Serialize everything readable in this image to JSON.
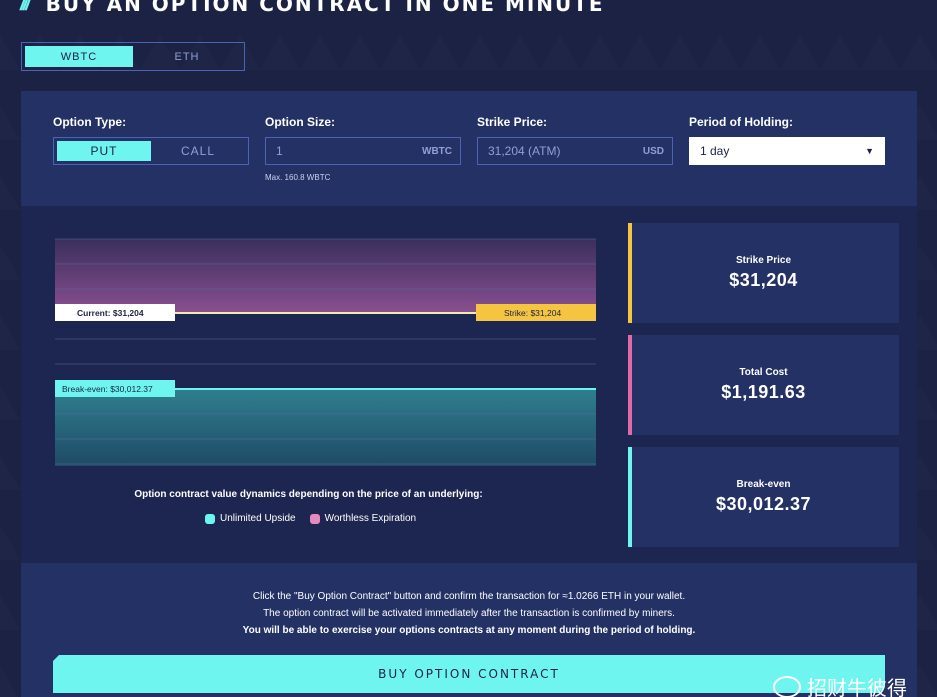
{
  "header": {
    "icon": "slash-stripes-icon",
    "title": "BUY AN OPTION CONTRACT IN ONE MINUTE"
  },
  "asset_toggle": {
    "options": [
      "WBTC",
      "ETH"
    ],
    "selected": "WBTC"
  },
  "form": {
    "option_type": {
      "label": "Option Type:",
      "options": [
        "PUT",
        "CALL"
      ],
      "selected": "PUT"
    },
    "option_size": {
      "label": "Option Size:",
      "value": "1",
      "unit": "WBTC",
      "hint": "Max. 160.8 WBTC"
    },
    "strike_price": {
      "label": "Strike Price:",
      "value": "31,204 (ATM)",
      "unit": "USD"
    },
    "period": {
      "label": "Period of Holding:",
      "value": "1 day"
    }
  },
  "chart": {
    "current_label": "Current: $31,204",
    "strike_label": "Strike: $31,204",
    "breakeven_label": "Break-even: $30,012.37",
    "caption": "Option contract value dynamics depending on the price of an underlying:",
    "legend": [
      {
        "label": "Unlimited Upside",
        "color": "#6ff5f0"
      },
      {
        "label": "Worthless Expiration",
        "color": "#e58ac0"
      }
    ],
    "colors": {
      "upper": "#8a4f8f",
      "lower": "#2f7f8f",
      "strike": "#f5c542",
      "breakeven": "#6ff5f0"
    }
  },
  "stats": [
    {
      "label": "Strike Price",
      "value": "$31,204",
      "color": "#f5c542"
    },
    {
      "label": "Total Cost",
      "value": "$1,191.63",
      "color": "#e06aa8"
    },
    {
      "label": "Break-even",
      "value": "$30,012.37",
      "color": "#6ff5f0"
    }
  ],
  "info": {
    "line1": "Click the \"Buy Option Contract\" button and confirm the transaction for ≈1.0266 ETH in your wallet.",
    "line2": "The option contract will be activated immediately after the transaction is confirmed by miners.",
    "line3": "You will be able to exercise your options contracts at any moment during the period of holding."
  },
  "buy_button": {
    "label": "BUY OPTION CONTRACT"
  },
  "watermark": {
    "text": "招财牛彼得"
  }
}
